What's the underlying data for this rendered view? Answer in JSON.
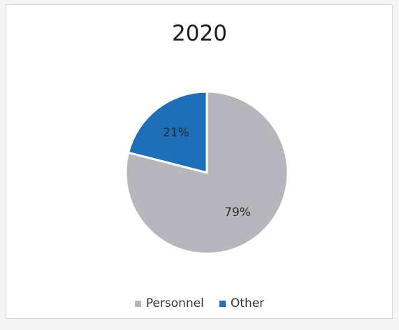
{
  "chart_data": {
    "type": "pie",
    "title": "2020",
    "categories": [
      "Personnel",
      "Other"
    ],
    "values": [
      79,
      21
    ],
    "labels": [
      "79%",
      "21%"
    ],
    "colors": [
      "#b7b6bd",
      "#1f6eb8"
    ],
    "legend_position": "bottom"
  }
}
